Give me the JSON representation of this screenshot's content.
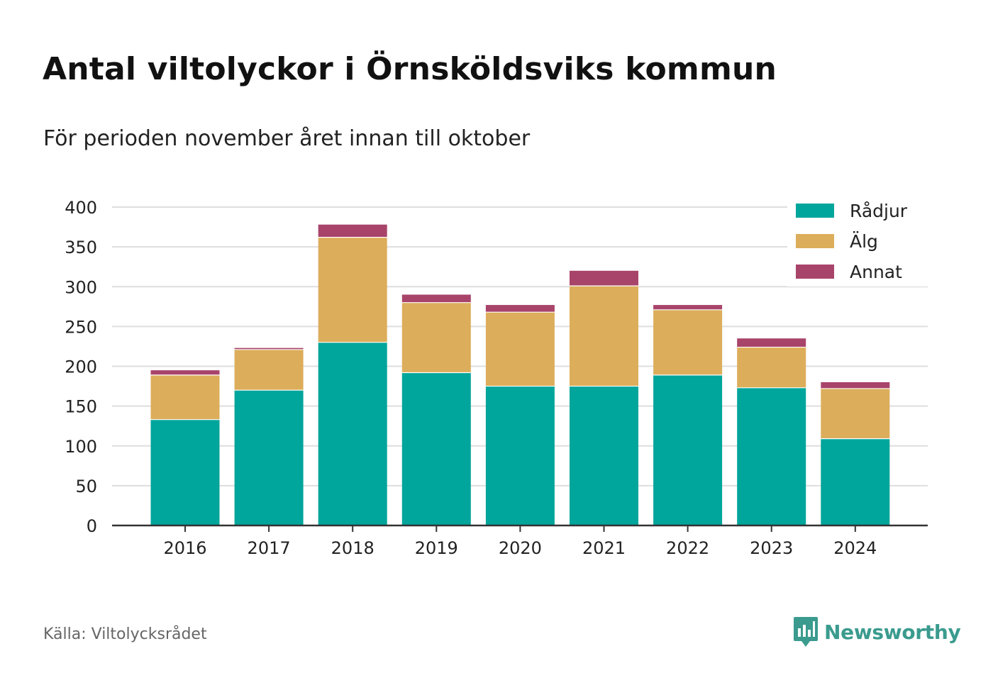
{
  "header": {
    "title": "Antal viltolyckor i Örnsköldsviks kommun",
    "subtitle": "För perioden november året innan till oktober"
  },
  "footer": {
    "source": "Källa: Viltolycksrådet",
    "brand": "Newsworthy",
    "brand_icon": "newsworthy-logo-icon",
    "brand_color": "#3a9b8e"
  },
  "chart_data": {
    "type": "bar",
    "stacked": true,
    "categories": [
      "2016",
      "2017",
      "2018",
      "2019",
      "2020",
      "2021",
      "2022",
      "2023",
      "2024"
    ],
    "series": [
      {
        "name": "Rådjur",
        "color": "#00a59b",
        "values": [
          133,
          170,
          230,
          192,
          175,
          175,
          189,
          173,
          109
        ]
      },
      {
        "name": "Älg",
        "color": "#dcad5a",
        "values": [
          56,
          51,
          132,
          88,
          93,
          126,
          82,
          51,
          63
        ]
      },
      {
        "name": "Annat",
        "color": "#a8446a",
        "values": [
          6,
          2,
          16,
          10,
          9,
          19,
          6,
          11,
          8
        ]
      }
    ],
    "title": "Antal viltolyckor i Örnsköldsviks kommun",
    "subtitle": "För perioden november året innan till oktober",
    "xlabel": "",
    "ylabel": "",
    "ylim": [
      0,
      400
    ],
    "yticks": [
      "0",
      "50",
      "100",
      "150",
      "200",
      "250",
      "300",
      "350",
      "400"
    ],
    "grid": true,
    "legend_position": "top-right"
  }
}
